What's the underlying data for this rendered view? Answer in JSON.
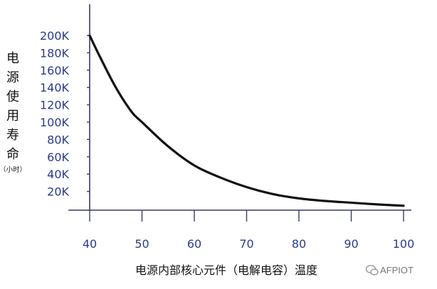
{
  "chart_data": {
    "type": "line",
    "x": [
      40,
      42,
      45,
      48,
      50,
      55,
      60,
      65,
      70,
      75,
      80,
      85,
      90,
      95,
      100
    ],
    "y": [
      200000,
      175000,
      140000,
      112000,
      100000,
      72000,
      50000,
      36000,
      25000,
      17000,
      12000,
      9000,
      7000,
      5000,
      3500
    ],
    "ylabel": "电源使用寿命",
    "ylabel_unit": "（小时）",
    "xlabel": "电源内部核心元件（电解电容）温度",
    "xlim": [
      40,
      100
    ],
    "ylim": [
      0,
      200000
    ],
    "xticks": [
      40,
      50,
      60,
      70,
      80,
      90,
      100
    ],
    "xtick_labels": [
      "40",
      "50",
      "60",
      "70",
      "80",
      "90",
      "100"
    ],
    "yticks": [
      20000,
      40000,
      60000,
      80000,
      100000,
      120000,
      140000,
      160000,
      180000,
      200000
    ],
    "ytick_labels": [
      "20K",
      "40K",
      "60K",
      "80K",
      "100K",
      "120K",
      "140K",
      "160K",
      "180K",
      "200K"
    ],
    "grid": false,
    "line_color": "#111111",
    "tick_color": "#2b3a8c"
  },
  "watermark": {
    "text": "AFPIOT",
    "icon": "wechat-icon"
  }
}
